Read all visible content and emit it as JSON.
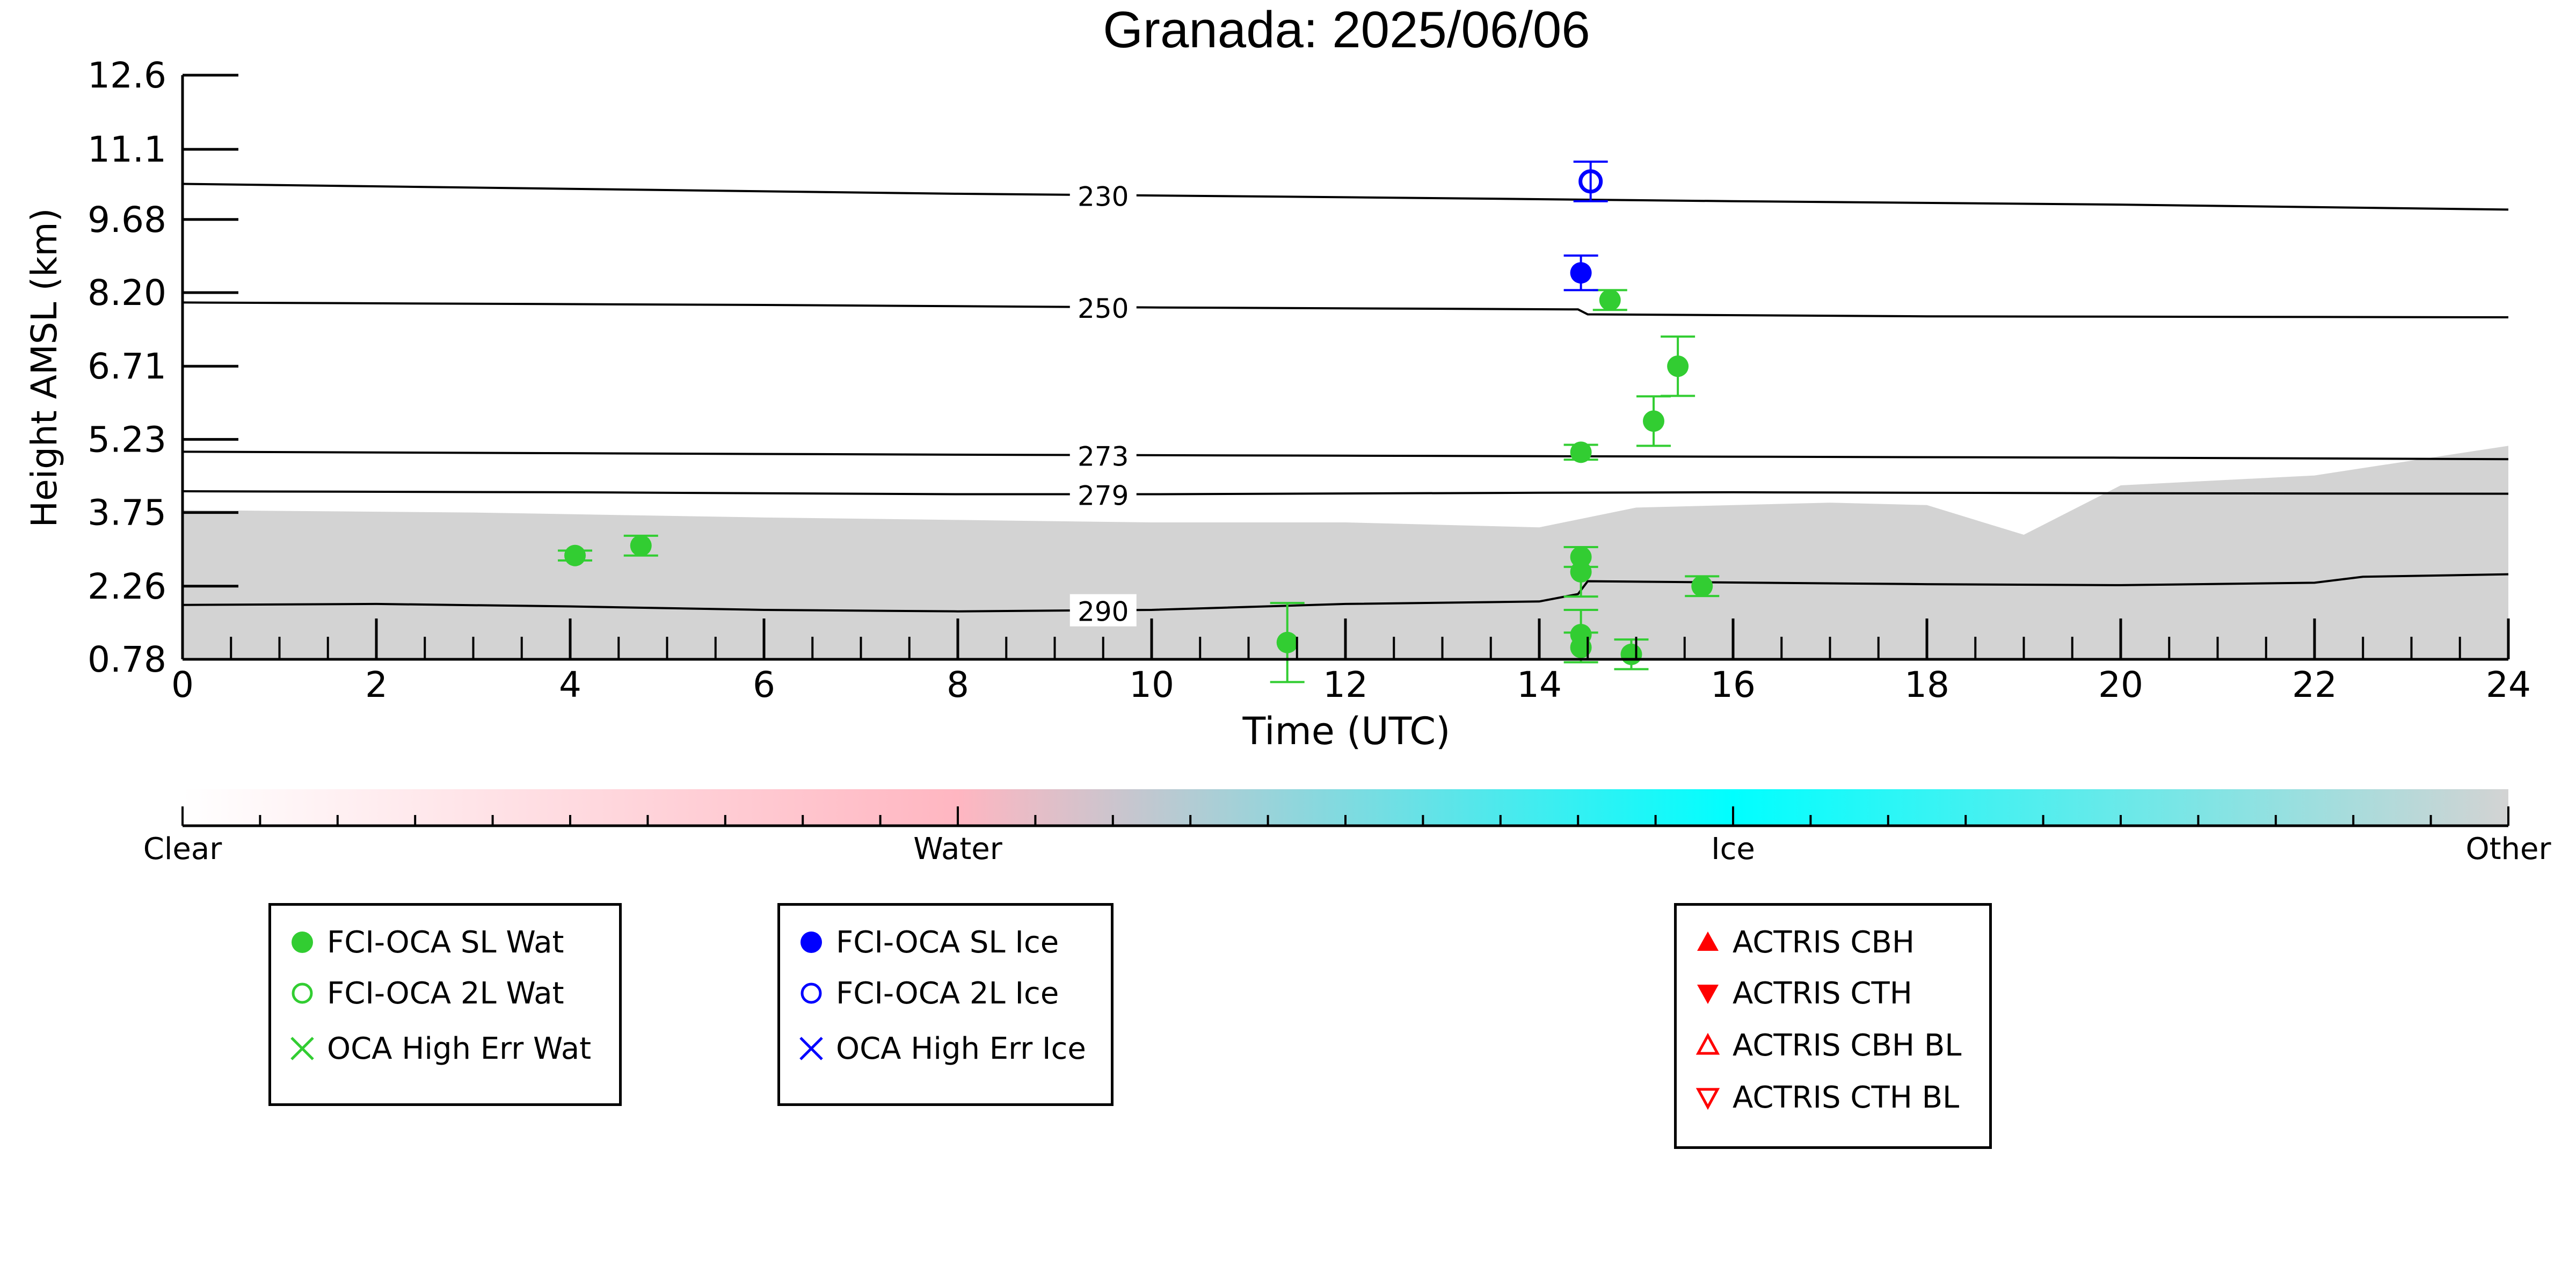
{
  "chart_data": [
    {
      "type": "scatter",
      "title": "Granada: 2025/06/06",
      "xlabel": "Time (UTC)",
      "ylabel": "Height AMSL (km)",
      "xlim": [
        0,
        24
      ],
      "ylim": [
        0.78,
        12.6
      ],
      "xticks": [
        0,
        2,
        4,
        6,
        8,
        10,
        12,
        14,
        16,
        18,
        20,
        22,
        24
      ],
      "xtick_labels": [
        "0",
        "2",
        "4",
        "6",
        "8",
        "10",
        "12",
        "14",
        "16",
        "18",
        "20",
        "22",
        "24"
      ],
      "yticks": [
        0.78,
        2.26,
        3.75,
        5.23,
        6.71,
        8.2,
        9.68,
        11.1,
        12.6
      ],
      "ytick_labels": [
        "0.78",
        "2.26",
        "3.75",
        "5.23",
        "6.71",
        "8.20",
        "9.68",
        "11.1",
        "12.6"
      ],
      "grid": false,
      "background_field": {
        "name": "Other",
        "color": "#d3d3d3",
        "top_profile": [
          [
            0,
            3.8
          ],
          [
            3,
            3.75
          ],
          [
            6,
            3.65
          ],
          [
            8,
            3.6
          ],
          [
            10,
            3.55
          ],
          [
            12,
            3.55
          ],
          [
            14,
            3.45
          ],
          [
            15,
            3.85
          ],
          [
            17,
            3.95
          ],
          [
            18,
            3.9
          ],
          [
            19,
            3.3
          ],
          [
            20,
            4.3
          ],
          [
            22,
            4.5
          ],
          [
            24,
            5.1
          ]
        ]
      },
      "isotherms": [
        {
          "label": "230",
          "label_x": 9.5,
          "points": [
            [
              0,
              10.4
            ],
            [
              4,
              10.3
            ],
            [
              8,
              10.2
            ],
            [
              12,
              10.13
            ],
            [
              16,
              10.05
            ],
            [
              20,
              9.98
            ],
            [
              24,
              9.88
            ]
          ]
        },
        {
          "label": "250",
          "label_x": 9.5,
          "points": [
            [
              0,
              8.0
            ],
            [
              6,
              7.95
            ],
            [
              10,
              7.9
            ],
            [
              14.4,
              7.86
            ],
            [
              14.5,
              7.76
            ],
            [
              18,
              7.72
            ],
            [
              24,
              7.7
            ]
          ]
        },
        {
          "label": "273",
          "label_x": 9.5,
          "points": [
            [
              0,
              4.98
            ],
            [
              4,
              4.95
            ],
            [
              8,
              4.92
            ],
            [
              12,
              4.9
            ],
            [
              16,
              4.88
            ],
            [
              20,
              4.86
            ],
            [
              24,
              4.83
            ]
          ]
        },
        {
          "label": "279",
          "label_x": 9.5,
          "points": [
            [
              0,
              4.18
            ],
            [
              4,
              4.16
            ],
            [
              8,
              4.12
            ],
            [
              10,
              4.12
            ],
            [
              14,
              4.15
            ],
            [
              16,
              4.16
            ],
            [
              20,
              4.14
            ],
            [
              24,
              4.13
            ]
          ]
        },
        {
          "label": "290",
          "label_x": 9.5,
          "points": [
            [
              0,
              1.88
            ],
            [
              2,
              1.9
            ],
            [
              4,
              1.85
            ],
            [
              6,
              1.78
            ],
            [
              8,
              1.75
            ],
            [
              10,
              1.78
            ],
            [
              12,
              1.9
            ],
            [
              14,
              1.95
            ],
            [
              14.4,
              2.1
            ],
            [
              14.5,
              2.36
            ],
            [
              18,
              2.3
            ],
            [
              20,
              2.28
            ],
            [
              22,
              2.33
            ],
            [
              22.5,
              2.45
            ],
            [
              24,
              2.5
            ]
          ]
        }
      ],
      "series": [
        {
          "name": "FCI-OCA SL Wat",
          "color": "#32cd32",
          "marker": "filled-circle",
          "points": [
            {
              "x": 4.05,
              "y": 2.88,
              "err": 0.1
            },
            {
              "x": 4.73,
              "y": 3.08,
              "err": 0.2
            },
            {
              "x": 11.4,
              "y": 1.12,
              "err": 0.8
            },
            {
              "x": 14.43,
              "y": 4.97,
              "err": 0.15
            },
            {
              "x": 14.43,
              "y": 2.85,
              "err": 0.2
            },
            {
              "x": 14.43,
              "y": 2.55,
              "err": 0.5
            },
            {
              "x": 14.43,
              "y": 1.28,
              "err": 0.5
            },
            {
              "x": 14.43,
              "y": 1.02,
              "err": 0.3
            },
            {
              "x": 14.73,
              "y": 8.05,
              "err": 0.2
            },
            {
              "x": 14.95,
              "y": 0.88,
              "err": 0.3
            },
            {
              "x": 15.18,
              "y": 5.6,
              "err": 0.5
            },
            {
              "x": 15.43,
              "y": 6.71,
              "err": 0.6
            },
            {
              "x": 15.68,
              "y": 2.26,
              "err": 0.2
            }
          ]
        },
        {
          "name": "FCI-OCA 2L Wat",
          "color": "#32cd32",
          "marker": "open-circle",
          "points": []
        },
        {
          "name": "OCA High Err Wat",
          "color": "#32cd32",
          "marker": "cross",
          "points": []
        },
        {
          "name": "FCI-OCA SL Ice",
          "color": "#0000ff",
          "marker": "filled-circle",
          "points": [
            {
              "x": 14.43,
              "y": 8.6,
              "err": 0.35
            }
          ]
        },
        {
          "name": "FCI-OCA 2L Ice",
          "color": "#0000ff",
          "marker": "open-circle",
          "points": [
            {
              "x": 14.53,
              "y": 10.45,
              "err": 0.4
            }
          ]
        },
        {
          "name": "OCA High Err Ice",
          "color": "#0000ff",
          "marker": "cross",
          "points": []
        },
        {
          "name": "ACTRIS CBH",
          "color": "#ff0000",
          "marker": "filled-triangle-up",
          "points": []
        },
        {
          "name": "ACTRIS CTH",
          "color": "#ff0000",
          "marker": "filled-triangle-down",
          "points": []
        },
        {
          "name": "ACTRIS CBH BL",
          "color": "#ff0000",
          "marker": "open-triangle-up",
          "points": []
        },
        {
          "name": "ACTRIS CTH BL",
          "color": "#ff0000",
          "marker": "open-triangle-down",
          "points": []
        }
      ]
    },
    {
      "type": "heatmap",
      "title": "",
      "xlabel": "",
      "ylabel": "",
      "colorbar_range": [
        0,
        3
      ],
      "colorbar_labels": [
        {
          "value": 0,
          "text": "Clear"
        },
        {
          "value": 1,
          "text": "Water"
        },
        {
          "value": 2,
          "text": "Ice"
        },
        {
          "value": 3,
          "text": "Other"
        }
      ],
      "colorbar_stops": [
        {
          "value": 0,
          "color": "#ffffff"
        },
        {
          "value": 1,
          "color": "#ffb6c1"
        },
        {
          "value": 2,
          "color": "#00ffff"
        },
        {
          "value": 3,
          "color": "#d3d3d3"
        }
      ]
    }
  ],
  "legends": {
    "water": [
      "FCI-OCA SL Wat",
      "FCI-OCA 2L Wat",
      "OCA High Err Wat"
    ],
    "ice": [
      "FCI-OCA SL Ice",
      "FCI-OCA 2L Ice",
      "OCA High Err Ice"
    ],
    "actris": [
      "ACTRIS CBH",
      "ACTRIS CTH",
      "ACTRIS CBH BL",
      "ACTRIS CTH BL"
    ]
  }
}
